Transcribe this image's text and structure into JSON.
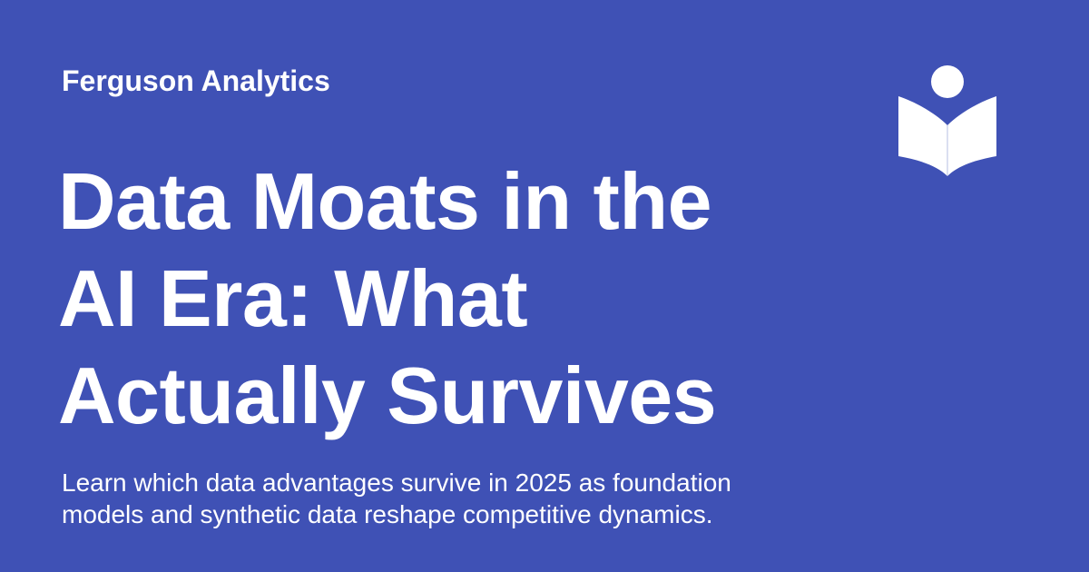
{
  "brand": {
    "name": "Ferguson Analytics",
    "icon": "open-book-reader-icon"
  },
  "article": {
    "title": "Data Moats in the AI Era: What Actually Survives",
    "description": "Learn which data advantages survive in 2025 as foundation models and synthetic data reshape competitive dynamics."
  },
  "colors": {
    "background": "#3f51b5",
    "text": "#ffffff"
  }
}
